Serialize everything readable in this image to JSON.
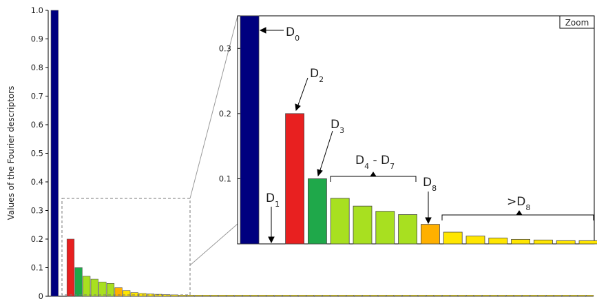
{
  "chart_data": [
    {
      "type": "bar",
      "ylabel": "Values of the Fourier descriptors",
      "xlabel": "",
      "ylim": [
        0,
        1.0
      ],
      "yticks": [
        "0",
        "0.1",
        "0.2",
        "0.3",
        "0.4",
        "0.5",
        "0.6",
        "0.7",
        "0.8",
        "0.9",
        "1.0"
      ],
      "values": [
        1.0,
        0,
        0.2,
        0.1,
        0.07,
        0.06,
        0.05,
        0.045,
        0.03,
        0.02,
        0.013,
        0.01,
        0.008,
        0.007,
        0.006,
        0.005,
        0.004,
        0.004,
        0.004,
        0.004,
        0.004,
        0.004,
        0.004,
        0.004,
        0.004,
        0.004,
        0.004,
        0.004,
        0.004,
        0.004,
        0.004,
        0.004,
        0.004,
        0.004,
        0.004,
        0.004,
        0.004,
        0.004,
        0.004,
        0.004,
        0.004,
        0.004,
        0.004,
        0.004,
        0.004,
        0.004,
        0.004,
        0.004,
        0.004,
        0.004,
        0.004,
        0.004,
        0.004,
        0.004,
        0.004,
        0.004,
        0.004,
        0.004,
        0.004,
        0.004,
        0.004,
        0.004,
        0.004,
        0.004,
        0.004,
        0.004,
        0.004,
        0.004
      ],
      "colors": [
        "#00007f",
        "#00007f",
        "#e82020",
        "#1fa84a",
        "#a8e020",
        "#a8e020",
        "#a8e020",
        "#a8e020",
        "#ffb000",
        "#ffe600",
        "#ffe600",
        "#ffe600",
        "#ffe600",
        "#ffe600",
        "#ffe600",
        "#ffe600",
        "#ffe600"
      ],
      "zoom_region": {
        "x_from_index": 0,
        "x_to_index": 16,
        "y_max": 0.34
      }
    },
    {
      "type": "bar",
      "title": "Zoom",
      "ylim": [
        0,
        0.35
      ],
      "yticks": [
        "0.1",
        "0.2",
        "0.3"
      ],
      "values": [
        0.35,
        0,
        0.2,
        0.1,
        0.07,
        0.058,
        0.05,
        0.045,
        0.03,
        0.018,
        0.012,
        0.009,
        0.007,
        0.006,
        0.005,
        0.005
      ],
      "colors": [
        "#00007f",
        "#00007f",
        "#e82020",
        "#1fa84a",
        "#a8e020",
        "#a8e020",
        "#a8e020",
        "#a8e020",
        "#ffb000",
        "#ffe600",
        "#ffe600",
        "#ffe600",
        "#ffe600",
        "#ffe600",
        "#ffe600",
        "#ffe600"
      ],
      "annotations": [
        {
          "main": "D",
          "sub": "0"
        },
        {
          "main": "D",
          "sub": "1"
        },
        {
          "main": "D",
          "sub": "2"
        },
        {
          "main": "D",
          "sub": "3"
        },
        {
          "main": "D",
          "sub": "4",
          "tail": " - D",
          "sub2": "7"
        },
        {
          "main": "D",
          "sub": "8"
        },
        {
          "main": ">D",
          "sub": "8"
        }
      ]
    }
  ]
}
